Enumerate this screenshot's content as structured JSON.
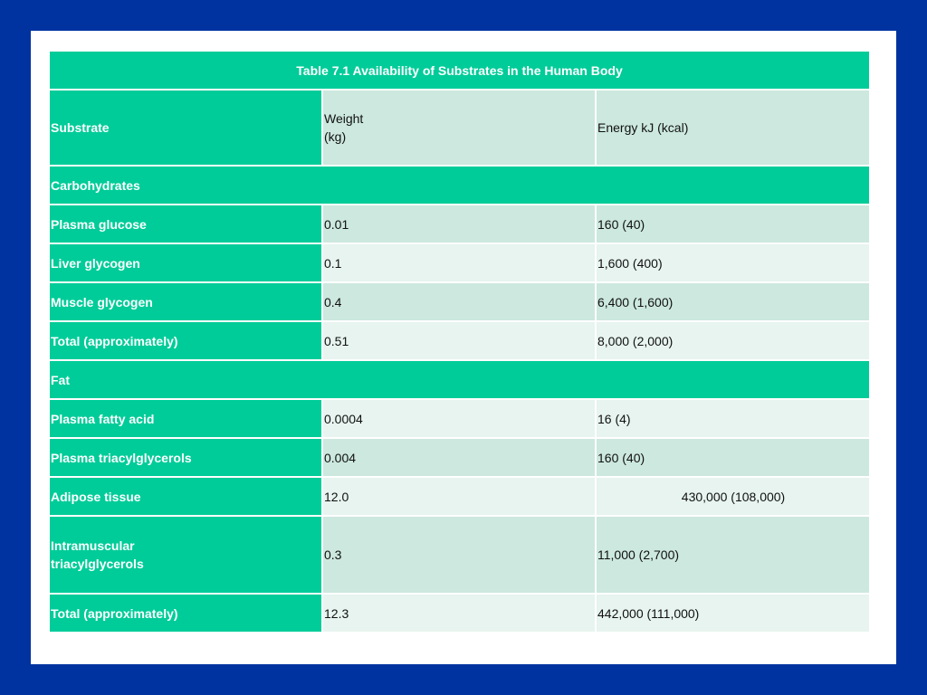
{
  "table": {
    "caption": "Table 7.1 Availability of Substrates in the Human Body",
    "headers": {
      "substrate": "Substrate",
      "weight_line1": "Weight",
      "weight_line2": "(kg)",
      "energy": "Energy kJ (kcal)"
    },
    "sections": [
      {
        "title": "Carbohydrates",
        "rows": [
          {
            "substrate": "Plasma glucose",
            "weight": "0.01",
            "energy": "160 (40)"
          },
          {
            "substrate": "Liver glycogen",
            "weight": "0.1",
            "energy": "1,600 (400)"
          },
          {
            "substrate": "Muscle glycogen",
            "weight": "0.4",
            "energy": "6,400 (1,600)"
          },
          {
            "substrate": "Total (approximately)",
            "weight": "0.51",
            "energy": "8,000 (2,000)"
          }
        ]
      },
      {
        "title": "Fat",
        "rows": [
          {
            "substrate": "Plasma fatty acid",
            "weight": "0.0004",
            "energy": "16 (4)"
          },
          {
            "substrate": "Plasma triacylglycerols",
            "weight": "0.004",
            "energy": "160 (40)"
          },
          {
            "substrate": "Adipose tissue",
            "weight": "12.0",
            "energy": "430,000 (108,000)"
          },
          {
            "substrate_line1": "Intramuscular",
            "substrate_line2": "triacylglycerols",
            "weight": "0.3",
            "energy": "11,000 (2,700)"
          },
          {
            "substrate": "Total (approximately)",
            "weight": "12.3",
            "energy": "442,000 (111,000)"
          }
        ]
      }
    ]
  }
}
